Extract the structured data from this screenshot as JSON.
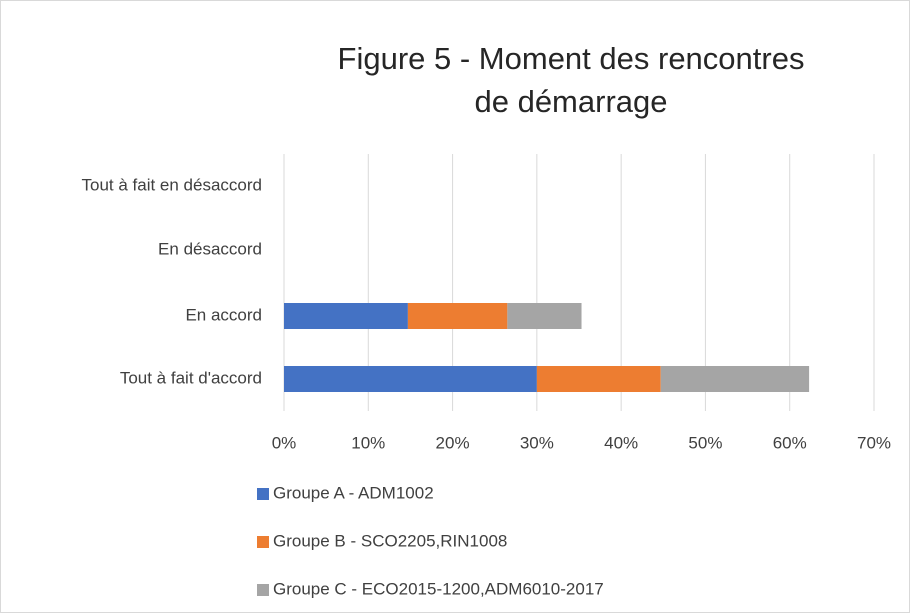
{
  "chart_data": {
    "type": "stacked-barh",
    "title": "Figure 5 - Moment des rencontres de démarrage",
    "categories": [
      "Tout à fait en désaccord",
      "En désaccord",
      "En accord",
      "Tout à fait d'accord"
    ],
    "series": [
      {
        "name": "Groupe A - ADM1002",
        "color": "#4472c4",
        "values": [
          0,
          0,
          14.7,
          30.0
        ]
      },
      {
        "name": "Groupe B - SCO2205,RIN1008",
        "color": "#ed7d31",
        "values": [
          0,
          0,
          11.8,
          14.7
        ]
      },
      {
        "name": "Groupe C - ECO2015-1200,ADM6010-2017",
        "color": "#a5a5a5",
        "values": [
          0,
          0,
          8.8,
          17.6
        ]
      }
    ],
    "xlim": [
      0,
      70
    ],
    "xticks": [
      {
        "value": 0,
        "label": "0%"
      },
      {
        "value": 10,
        "label": "10%"
      },
      {
        "value": 20,
        "label": "20%"
      },
      {
        "value": 30,
        "label": "30%"
      },
      {
        "value": 40,
        "label": "40%"
      },
      {
        "value": 50,
        "label": "50%"
      },
      {
        "value": 60,
        "label": "60%"
      },
      {
        "value": 70,
        "label": "70%"
      }
    ],
    "grid": true,
    "legend": "bottom"
  }
}
